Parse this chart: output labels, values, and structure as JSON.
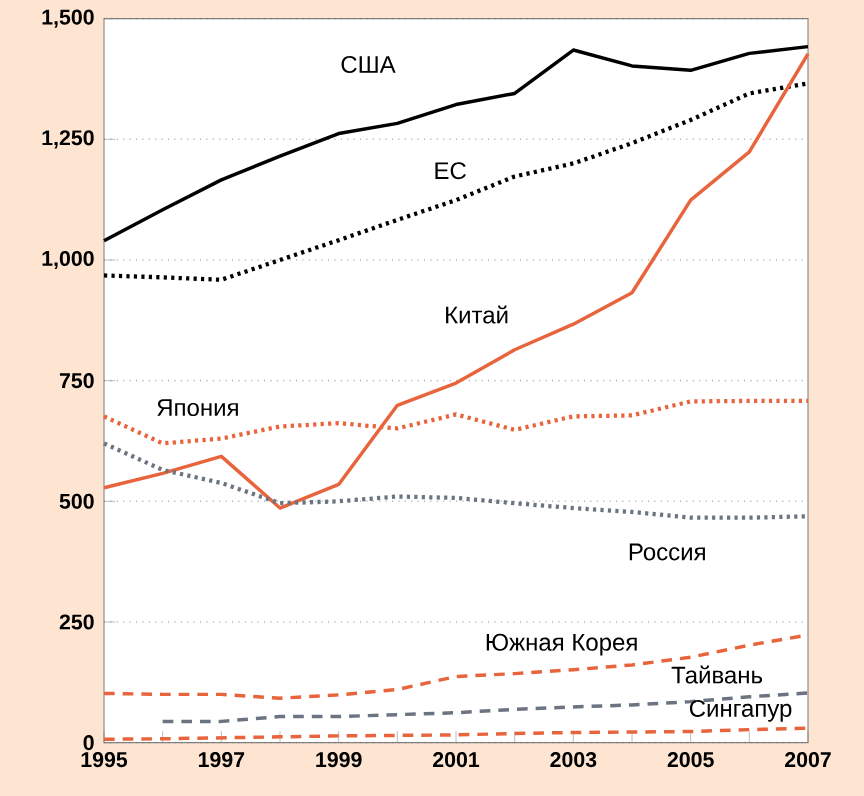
{
  "chart_data": {
    "type": "line",
    "grid": "y",
    "x": [
      1995,
      1996,
      1997,
      1998,
      1999,
      2000,
      2001,
      2002,
      2003,
      2004,
      2005,
      2006,
      2007
    ],
    "xlim": [
      1995,
      2007
    ],
    "xticks": [
      1995,
      {
        "value": 1996,
        "label": null
      },
      1997,
      {
        "value": 1998,
        "label": null
      },
      1999,
      {
        "value": 2000,
        "label": null
      },
      2001,
      {
        "value": 2002,
        "label": null
      },
      2003,
      {
        "value": 2004,
        "label": null
      },
      2005,
      {
        "value": 2006,
        "label": null
      },
      2007
    ],
    "ylim": [
      0,
      1500
    ],
    "yticks": [
      0,
      250,
      500,
      750,
      {
        "value": 1000,
        "label": "1,000"
      },
      {
        "value": 1250,
        "label": "1,250"
      },
      {
        "value": 1500,
        "label": "1,500"
      }
    ],
    "series": [
      {
        "name": "США",
        "color": "#000000",
        "line_style": "solid",
        "values": [
          1040,
          1104,
          1166,
          1215,
          1262,
          1283,
          1322,
          1345,
          1435,
          1402,
          1393,
          1428,
          1442
        ]
      },
      {
        "name": "ЕС",
        "color": "#000000",
        "line_style": "dotted",
        "values": [
          968,
          964,
          959,
          1000,
          1041,
          1083,
          1124,
          1173,
          1200,
          1242,
          1290,
          1345,
          1366
        ]
      },
      {
        "name": "Китай",
        "color": "#e8643c",
        "line_style": "solid",
        "values": [
          528,
          558,
          593,
          486,
          535,
          699,
          745,
          814,
          867,
          932,
          1124,
          1224,
          1427
        ]
      },
      {
        "name": "Япония",
        "color": "#e8643c",
        "line_style": "dotted",
        "values": [
          676,
          620,
          630,
          655,
          662,
          651,
          680,
          648,
          676,
          678,
          707,
          708,
          708
        ]
      },
      {
        "name": "Россия",
        "color": "#6b7480",
        "line_style": "dotted",
        "values": [
          620,
          565,
          538,
          496,
          500,
          510,
          507,
          496,
          486,
          478,
          466,
          466,
          469
        ]
      },
      {
        "name": "Южная Корея",
        "color": "#e8643c",
        "line_style": "dashed",
        "values": [
          102,
          100,
          100,
          92,
          99,
          110,
          137,
          143,
          151,
          161,
          177,
          202,
          223
        ]
      },
      {
        "name": "Тайвань",
        "color": "#6b7480",
        "line_style": "dashed",
        "values": [
          null,
          44,
          44,
          54,
          54,
          58,
          62,
          69,
          74,
          78,
          85,
          95,
          103
        ]
      },
      {
        "name": "Сингапур",
        "color": "#e8643c",
        "line_style": "dashed",
        "values": [
          7,
          8,
          10,
          12,
          14,
          15,
          16,
          19,
          21,
          22,
          23,
          27,
          30
        ]
      }
    ]
  }
}
